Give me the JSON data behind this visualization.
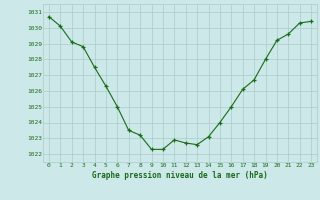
{
  "x": [
    0,
    1,
    2,
    3,
    4,
    5,
    6,
    7,
    8,
    9,
    10,
    11,
    12,
    13,
    14,
    15,
    16,
    17,
    18,
    19,
    20,
    21,
    22,
    23
  ],
  "y": [
    1030.7,
    1030.1,
    1029.1,
    1028.8,
    1027.5,
    1026.3,
    1025.0,
    1023.5,
    1023.2,
    1022.3,
    1022.3,
    1022.9,
    1022.7,
    1022.6,
    1023.1,
    1024.0,
    1025.0,
    1026.1,
    1026.7,
    1028.0,
    1029.2,
    1029.6,
    1030.3,
    1030.4
  ],
  "line_color": "#1a6b1a",
  "marker": "+",
  "bg_color": "#cce8e8",
  "grid_color": "#aacccc",
  "xlabel": "Graphe pression niveau de la mer (hPa)",
  "xlabel_color": "#1a6b1a",
  "tick_color": "#1a6b1a",
  "ylim_min": 1021.5,
  "ylim_max": 1031.5,
  "xlim_min": -0.5,
  "xlim_max": 23.5,
  "yticks": [
    1022,
    1023,
    1024,
    1025,
    1026,
    1027,
    1028,
    1029,
    1030,
    1031
  ],
  "xticks": [
    0,
    1,
    2,
    3,
    4,
    5,
    6,
    7,
    8,
    9,
    10,
    11,
    12,
    13,
    14,
    15,
    16,
    17,
    18,
    19,
    20,
    21,
    22,
    23
  ]
}
